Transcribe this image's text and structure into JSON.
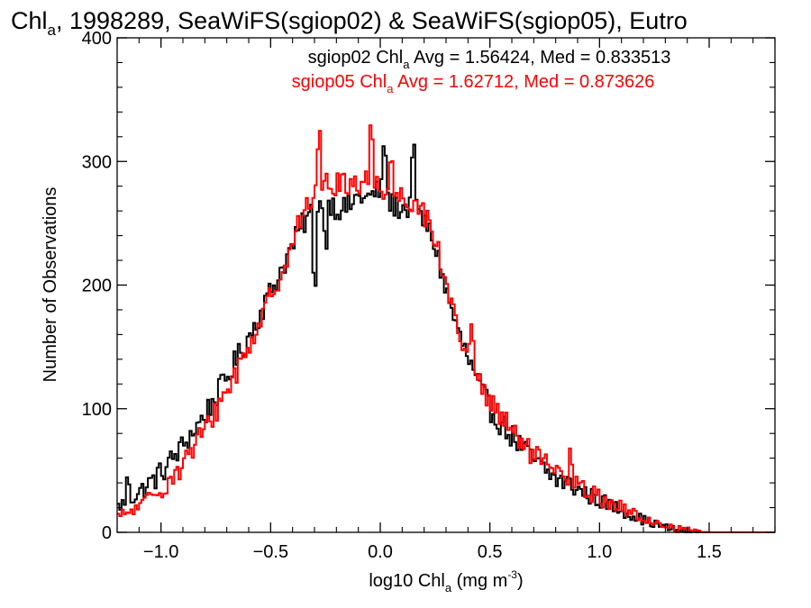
{
  "chart_data": {
    "type": "histogram",
    "title": {
      "main": "Chl",
      "sub": "a",
      "rest": ", 1998289, SeaWiFS(sgiop02) & SeaWiFS(sgiop05), Eutro"
    },
    "xlabel": {
      "pre": "log10 Chl",
      "sub": "a",
      "mid": " (mg m",
      "sup": "-3",
      "post": ")"
    },
    "ylabel": "Number of Observations",
    "xlim": [
      -1.2,
      1.8
    ],
    "ylim": [
      0,
      400
    ],
    "xticks": [
      -1.0,
      -0.5,
      0.0,
      0.5,
      1.0,
      1.5
    ],
    "xtick_labels": [
      "−1.0",
      "−0.5",
      "0.0",
      "0.5",
      "1.0",
      "1.5"
    ],
    "yticks": [
      0,
      100,
      200,
      300,
      400
    ],
    "ytick_labels": [
      "0",
      "100",
      "200",
      "300",
      "400"
    ],
    "grid": false,
    "legend_placement": "top-center",
    "bin_width": 0.01,
    "series": [
      {
        "id": "sgiop02",
        "color": "#000000",
        "legend": {
          "pre": "sgiop02 Chl",
          "sub": "a",
          "post": " Avg = 1.56424, Med = 0.833513"
        },
        "profile": [
          [
            -1.2,
            20
          ],
          [
            -1.1,
            32
          ],
          [
            -1.0,
            48
          ],
          [
            -0.9,
            70
          ],
          [
            -0.8,
            95
          ],
          [
            -0.7,
            125
          ],
          [
            -0.6,
            158
          ],
          [
            -0.5,
            195
          ],
          [
            -0.45,
            213
          ],
          [
            -0.4,
            232
          ],
          [
            -0.35,
            250
          ],
          [
            -0.3,
            262
          ],
          [
            -0.25,
            270
          ],
          [
            -0.2,
            262
          ],
          [
            -0.15,
            262
          ],
          [
            -0.1,
            272
          ],
          [
            -0.05,
            270
          ],
          [
            0.0,
            278
          ],
          [
            0.05,
            265
          ],
          [
            0.1,
            262
          ],
          [
            0.15,
            262
          ],
          [
            0.2,
            252
          ],
          [
            0.25,
            232
          ],
          [
            0.3,
            195
          ],
          [
            0.35,
            165
          ],
          [
            0.4,
            140
          ],
          [
            0.45,
            118
          ],
          [
            0.5,
            100
          ],
          [
            0.55,
            88
          ],
          [
            0.6,
            78
          ],
          [
            0.65,
            68
          ],
          [
            0.7,
            58
          ],
          [
            0.75,
            50
          ],
          [
            0.8,
            43
          ],
          [
            0.85,
            40
          ],
          [
            0.9,
            35
          ],
          [
            0.95,
            30
          ],
          [
            1.0,
            26
          ],
          [
            1.05,
            22
          ],
          [
            1.1,
            18
          ],
          [
            1.15,
            14
          ],
          [
            1.2,
            10
          ],
          [
            1.25,
            7
          ],
          [
            1.3,
            4
          ],
          [
            1.35,
            2
          ],
          [
            1.4,
            1
          ],
          [
            1.45,
            0
          ],
          [
            1.5,
            0
          ],
          [
            1.8,
            0
          ]
        ],
        "noise": 10,
        "spikes": [
          [
            -0.3,
            -55
          ],
          [
            -0.25,
            -30
          ],
          [
            0.15,
            50
          ],
          [
            0.02,
            38
          ],
          [
            -1.15,
            15
          ]
        ]
      },
      {
        "id": "sgiop05",
        "color": "#ff0000",
        "legend": {
          "pre": "sgiop05 Chl",
          "sub": "a",
          "post": " Avg = 1.62712, Med = 0.873626"
        },
        "profile": [
          [
            -1.2,
            12
          ],
          [
            -1.1,
            20
          ],
          [
            -1.0,
            35
          ],
          [
            -0.9,
            55
          ],
          [
            -0.8,
            82
          ],
          [
            -0.7,
            115
          ],
          [
            -0.6,
            150
          ],
          [
            -0.5,
            190
          ],
          [
            -0.45,
            212
          ],
          [
            -0.4,
            236
          ],
          [
            -0.35,
            258
          ],
          [
            -0.3,
            272
          ],
          [
            -0.25,
            280
          ],
          [
            -0.2,
            282
          ],
          [
            -0.15,
            282
          ],
          [
            -0.1,
            283
          ],
          [
            -0.05,
            285
          ],
          [
            0.0,
            280
          ],
          [
            0.05,
            275
          ],
          [
            0.1,
            272
          ],
          [
            0.15,
            268
          ],
          [
            0.2,
            258
          ],
          [
            0.25,
            240
          ],
          [
            0.3,
            200
          ],
          [
            0.35,
            168
          ],
          [
            0.4,
            145
          ],
          [
            0.45,
            122
          ],
          [
            0.5,
            105
          ],
          [
            0.55,
            92
          ],
          [
            0.6,
            82
          ],
          [
            0.65,
            72
          ],
          [
            0.7,
            62
          ],
          [
            0.75,
            54
          ],
          [
            0.8,
            48
          ],
          [
            0.85,
            44
          ],
          [
            0.9,
            38
          ],
          [
            0.95,
            32
          ],
          [
            1.0,
            28
          ],
          [
            1.05,
            24
          ],
          [
            1.1,
            20
          ],
          [
            1.15,
            15
          ],
          [
            1.2,
            11
          ],
          [
            1.25,
            8
          ],
          [
            1.3,
            5
          ],
          [
            1.35,
            3
          ],
          [
            1.4,
            2
          ],
          [
            1.45,
            1
          ],
          [
            1.5,
            0
          ],
          [
            1.8,
            0
          ]
        ],
        "noise": 10,
        "spikes": [
          [
            -0.28,
            45
          ],
          [
            -0.04,
            38
          ],
          [
            0.87,
            18
          ],
          [
            0.42,
            22
          ],
          [
            0.05,
            22
          ]
        ]
      }
    ]
  }
}
